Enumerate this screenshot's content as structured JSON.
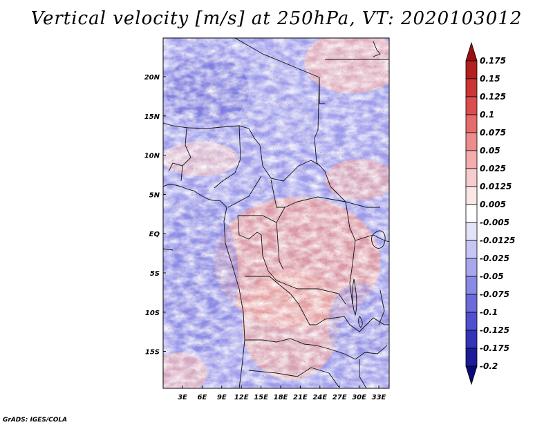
{
  "title": "Vertical velocity [m/s] at 250hPa, VT: 2020103012",
  "map": {
    "lon_labels": [
      "3E",
      "6E",
      "9E",
      "12E",
      "15E",
      "18E",
      "21E",
      "24E",
      "27E",
      "30E",
      "33E"
    ],
    "lat_labels": [
      "20N",
      "15N",
      "10N",
      "5N",
      "EQ",
      "5S",
      "10S",
      "15S"
    ]
  },
  "colorbar": {
    "labels": [
      "0.175",
      "0.15",
      "0.125",
      "0.1",
      "0.075",
      "0.05",
      "0.025",
      "0.0125",
      "0.005",
      "-0.005",
      "-0.0125",
      "-0.025",
      "-0.05",
      "-0.075",
      "-0.1",
      "-0.125",
      "-0.175",
      "-0.2"
    ],
    "colors": [
      "#9a1010",
      "#b41f1f",
      "#cc3535",
      "#dc4d4d",
      "#e66b6b",
      "#ee8b8b",
      "#f4acac",
      "#f8cccc",
      "#fbe6e6",
      "#ffffff",
      "#e3e3fa",
      "#c6c6f5",
      "#a7a7ee",
      "#8989e6",
      "#6b6bdc",
      "#5050cf",
      "#3434b8",
      "#1c1c98",
      "#0a0a78"
    ]
  },
  "credit": "GrADS: IGES/COLA"
}
